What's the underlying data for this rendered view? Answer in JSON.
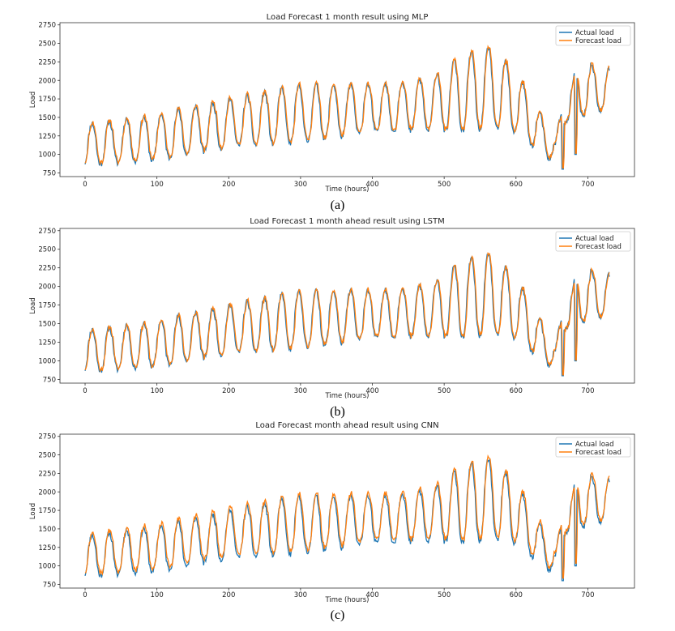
{
  "chart_data": [
    {
      "type": "line",
      "caption": "(a)",
      "title": "Load Forecast 1 month result using MLP",
      "xlabel": "Time (hours)",
      "ylabel": "Load",
      "xlim": [
        -35,
        765
      ],
      "ylim": [
        700,
        2780
      ],
      "xticks": [
        0,
        100,
        200,
        300,
        400,
        500,
        600,
        700
      ],
      "yticks": [
        750,
        1000,
        1250,
        1500,
        1750,
        2000,
        2250,
        2500,
        2750
      ],
      "legend": "top-right",
      "series": [
        {
          "name": "Actual load",
          "color": "#1f77b4",
          "noise_seed": 11,
          "lag": 0,
          "bias": 0,
          "noise_amp": 40
        },
        {
          "name": "Forecast load",
          "color": "#ff7f0e",
          "noise_seed": 23,
          "lag": 1,
          "bias": 15,
          "noise_amp": 55
        }
      ]
    },
    {
      "type": "line",
      "caption": "(b)",
      "title": "Load Forecast 1 month ahead result using LSTM",
      "xlabel": "Time (hours)",
      "ylabel": "Load",
      "xlim": [
        -35,
        765
      ],
      "ylim": [
        700,
        2780
      ],
      "xticks": [
        0,
        100,
        200,
        300,
        400,
        500,
        600,
        700
      ],
      "yticks": [
        750,
        1000,
        1250,
        1500,
        1750,
        2000,
        2250,
        2500,
        2750
      ],
      "legend": "top-right",
      "series": [
        {
          "name": "Actual load",
          "color": "#1f77b4",
          "noise_seed": 11,
          "lag": 0,
          "bias": 0,
          "noise_amp": 40
        },
        {
          "name": "Forecast load",
          "color": "#ff7f0e",
          "noise_seed": 37,
          "lag": 1,
          "bias": 10,
          "noise_amp": 50
        }
      ]
    },
    {
      "type": "line",
      "caption": "(c)",
      "title": "Load Forecast month ahead result using CNN",
      "xlabel": "Time (hours)",
      "ylabel": "Load",
      "xlim": [
        -35,
        765
      ],
      "ylim": [
        700,
        2780
      ],
      "xticks": [
        0,
        100,
        200,
        300,
        400,
        500,
        600,
        700
      ],
      "yticks": [
        750,
        1000,
        1250,
        1500,
        1750,
        2000,
        2250,
        2500,
        2750
      ],
      "legend": "top-right",
      "series": [
        {
          "name": "Actual load",
          "color": "#1f77b4",
          "noise_seed": 11,
          "lag": 0,
          "bias": 0,
          "noise_amp": 40
        },
        {
          "name": "Forecast load",
          "color": "#ff7f0e",
          "noise_seed": 53,
          "lag": 1,
          "bias": 35,
          "noise_amp": 75
        }
      ]
    }
  ],
  "series_shape": {
    "hours": 730,
    "daily_period": 24,
    "trend_points": [
      [
        0,
        1150
      ],
      [
        100,
        1250
      ],
      [
        200,
        1450
      ],
      [
        300,
        1580
      ],
      [
        400,
        1650
      ],
      [
        480,
        1700
      ],
      [
        520,
        1850
      ],
      [
        560,
        1950
      ],
      [
        600,
        1750
      ],
      [
        630,
        1350
      ],
      [
        655,
        1050
      ],
      [
        665,
        1600
      ],
      [
        690,
        1900
      ],
      [
        730,
        1900
      ]
    ],
    "daily_amplitude_points": [
      [
        0,
        300
      ],
      [
        100,
        330
      ],
      [
        200,
        350
      ],
      [
        300,
        420
      ],
      [
        400,
        350
      ],
      [
        480,
        380
      ],
      [
        520,
        550
      ],
      [
        560,
        600
      ],
      [
        600,
        450
      ],
      [
        640,
        250
      ],
      [
        660,
        150
      ],
      [
        690,
        400
      ],
      [
        730,
        300
      ]
    ],
    "drops": [
      [
        665,
        800
      ],
      [
        683,
        1000
      ],
      [
        697,
        1700
      ]
    ]
  }
}
